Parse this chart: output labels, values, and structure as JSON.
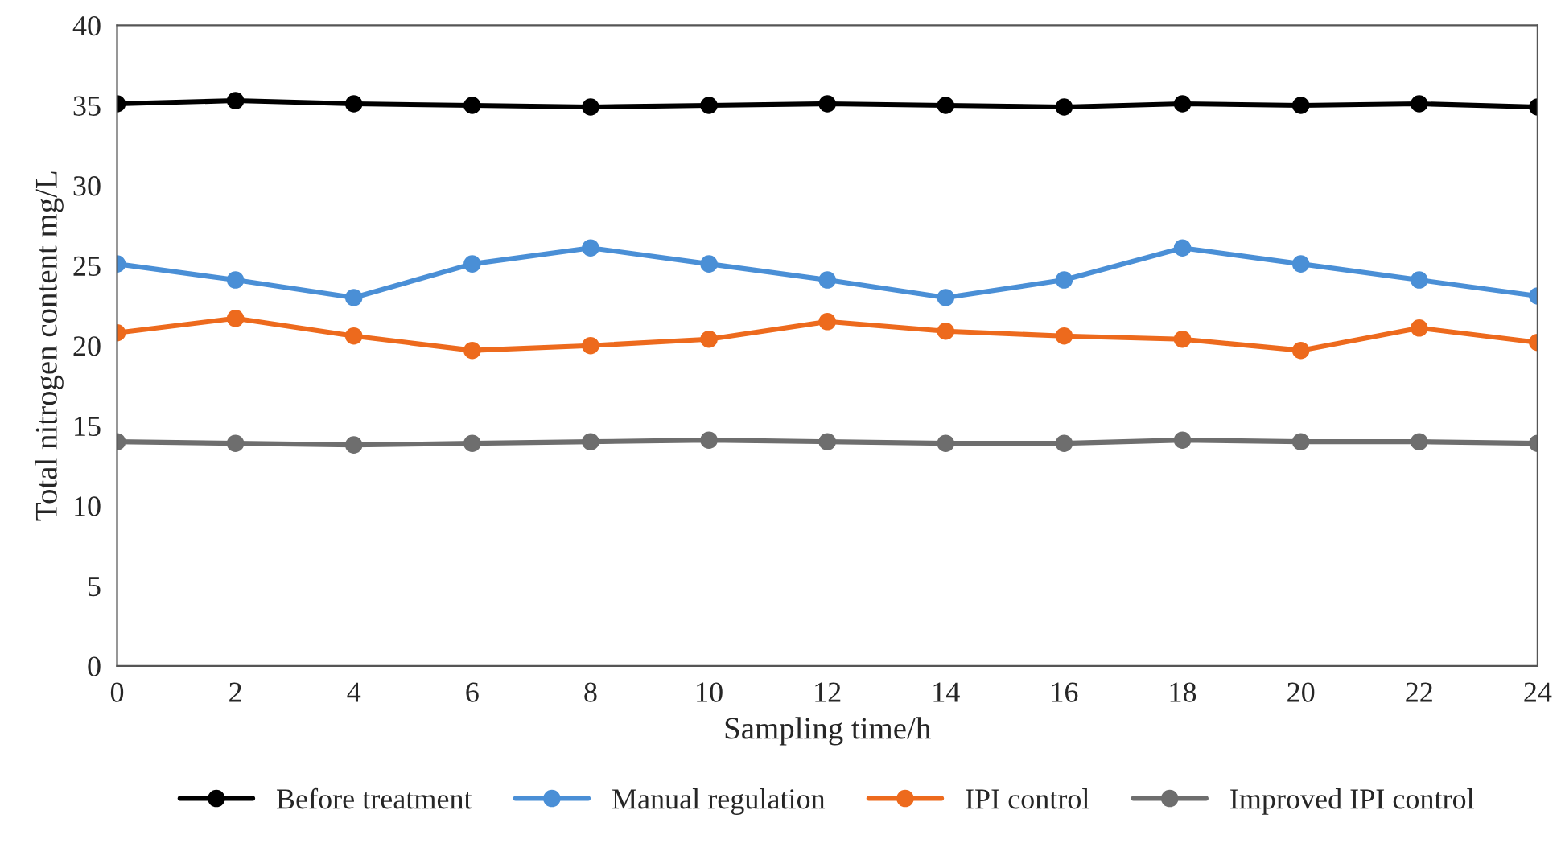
{
  "chart_data": {
    "type": "line",
    "xlabel": "Sampling time/h",
    "ylabel": "Total nitrogen content mg/L",
    "x": [
      0,
      2,
      4,
      6,
      8,
      10,
      12,
      14,
      16,
      18,
      20,
      22,
      24
    ],
    "series": [
      {
        "name": "Before treatment",
        "color": "#000000",
        "values": [
          35.1,
          35.3,
          35.1,
          35.0,
          34.9,
          35.0,
          35.1,
          35.0,
          34.9,
          35.1,
          35.0,
          35.1,
          34.9
        ]
      },
      {
        "name": "Manual regulation",
        "color": "#4a8fd6",
        "values": [
          25.1,
          24.1,
          23.0,
          25.1,
          26.1,
          25.1,
          24.1,
          23.0,
          24.1,
          26.1,
          25.1,
          24.1,
          23.1
        ]
      },
      {
        "name": "IPI control",
        "color": "#ed6a1d",
        "values": [
          20.8,
          21.7,
          20.6,
          19.7,
          20.0,
          20.4,
          21.5,
          20.9,
          20.6,
          20.4,
          19.7,
          21.1,
          20.2
        ]
      },
      {
        "name": "Improved IPI control",
        "color": "#6e6e6e",
        "values": [
          14.0,
          13.9,
          13.8,
          13.9,
          14.0,
          14.1,
          14.0,
          13.9,
          13.9,
          14.1,
          14.0,
          14.0,
          13.9
        ]
      }
    ],
    "xlim": [
      0,
      24
    ],
    "xticks": [
      0,
      2,
      4,
      6,
      8,
      10,
      12,
      14,
      16,
      18,
      20,
      22,
      24
    ],
    "ylim": [
      0,
      40
    ],
    "yticks": [
      0,
      5,
      10,
      15,
      20,
      25,
      30,
      35,
      40
    ],
    "grid": false,
    "legend": "bottom",
    "marker": "circle",
    "line_style": "solid"
  }
}
